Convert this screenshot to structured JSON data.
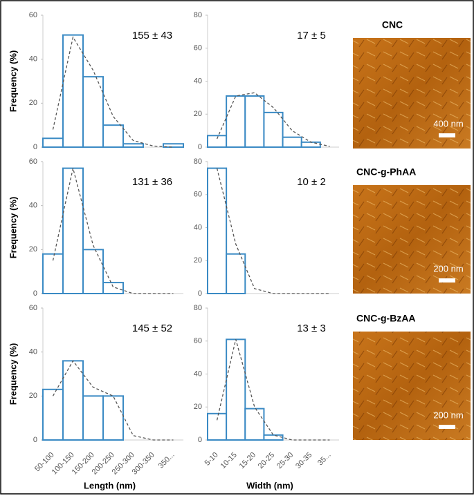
{
  "chart_data": [
    {
      "type": "bar",
      "annotation": "155 ± 43",
      "ylabel": "Frequency (%)",
      "categories": [
        null,
        null,
        null,
        null,
        null,
        null,
        null
      ],
      "series": [
        {
          "values": [
            4,
            51,
            32,
            10,
            1.5,
            0,
            1.5
          ],
          "color": "#3a8ac4"
        },
        {
          "type": "line",
          "values": [
            8,
            50,
            35,
            14,
            3,
            0.5,
            0
          ],
          "color": "#555555",
          "dash": true
        }
      ],
      "ylim": [
        0,
        60
      ],
      "yticks": [
        0,
        20,
        40,
        60
      ]
    },
    {
      "type": "bar",
      "annotation": "17 ± 5",
      "categories": [
        null,
        null,
        null,
        null,
        null,
        null,
        null
      ],
      "series": [
        {
          "values": [
            7,
            31,
            31,
            21,
            6,
            3,
            0
          ],
          "color": "#3a8ac4"
        },
        {
          "type": "line",
          "values": [
            5,
            31,
            33,
            24,
            10,
            3,
            0.5
          ],
          "color": "#555555",
          "dash": true
        }
      ],
      "ylim": [
        0,
        80
      ],
      "yticks": [
        0,
        20,
        40,
        60,
        80
      ]
    },
    {
      "type": "bar",
      "annotation": "131 ± 36",
      "ylabel": "Frequency (%)",
      "categories": [
        null,
        null,
        null,
        null,
        null,
        null,
        null
      ],
      "series": [
        {
          "values": [
            18,
            57,
            20,
            5,
            0,
            0,
            0
          ],
          "color": "#3a8ac4"
        },
        {
          "type": "line",
          "values": [
            15,
            57,
            22,
            3,
            0,
            0,
            0
          ],
          "color": "#555555",
          "dash": true
        }
      ],
      "ylim": [
        0,
        60
      ],
      "yticks": [
        0,
        20,
        40,
        60
      ]
    },
    {
      "type": "bar",
      "annotation": "10 ± 2",
      "categories": [
        null,
        null,
        null,
        null,
        null,
        null,
        null
      ],
      "series": [
        {
          "values": [
            76,
            24,
            0,
            0,
            0,
            0,
            0
          ],
          "color": "#3a8ac4"
        },
        {
          "type": "line",
          "values": [
            76,
            30,
            3,
            0,
            0,
            0,
            0
          ],
          "color": "#555555",
          "dash": true
        }
      ],
      "ylim": [
        0,
        80
      ],
      "yticks": [
        0,
        20,
        40,
        60,
        80
      ]
    },
    {
      "type": "bar",
      "annotation": "145 ± 52",
      "ylabel": "Frequency (%)",
      "xlabel": "Length (nm)",
      "categories": [
        "50-100",
        "100-150",
        "150-200",
        "200-250",
        "250-300",
        "300-350",
        "350..."
      ],
      "series": [
        {
          "values": [
            23,
            36,
            20,
            20,
            0,
            0,
            0
          ],
          "color": "#3a8ac4"
        },
        {
          "type": "line",
          "values": [
            20,
            36,
            24,
            20,
            2,
            0,
            0
          ],
          "color": "#555555",
          "dash": true
        }
      ],
      "ylim": [
        0,
        60
      ],
      "yticks": [
        0,
        20,
        40,
        60
      ]
    },
    {
      "type": "bar",
      "annotation": "13 ± 3",
      "xlabel": "Width (nm)",
      "categories": [
        "5-10",
        "10-15",
        "15-20",
        "20-25",
        "25-30",
        "30-35",
        "35..."
      ],
      "series": [
        {
          "values": [
            16,
            61,
            19,
            3,
            0,
            0,
            0
          ],
          "color": "#3a8ac4"
        },
        {
          "type": "line",
          "values": [
            12,
            61,
            20,
            3,
            0,
            0,
            0
          ],
          "color": "#555555",
          "dash": true
        }
      ],
      "ylim": [
        0,
        80
      ],
      "yticks": [
        0,
        20,
        40,
        60,
        80
      ]
    }
  ],
  "panels": [
    {
      "label": "CNC",
      "scale": "400 nm"
    },
    {
      "label": "CNC-g-PhAA",
      "scale": "200 nm"
    },
    {
      "label": "CNC-g-BzAA",
      "scale": "200 nm"
    }
  ]
}
